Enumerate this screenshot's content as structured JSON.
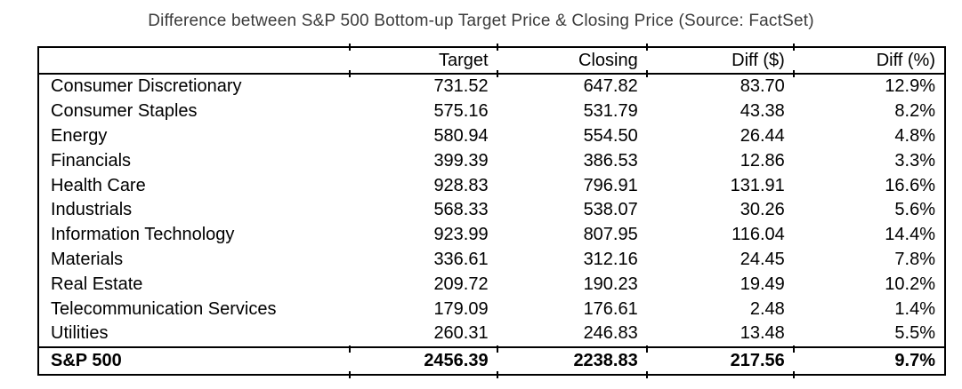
{
  "title": "Difference between S&P 500 Bottom-up Target Price & Closing Price (Source: FactSet)",
  "chart_data": {
    "type": "table",
    "title": "Difference between S&P 500 Bottom-up Target Price & Closing Price (Source: FactSet)",
    "columns": [
      "",
      "Target",
      "Closing",
      "Diff ($)",
      "Diff (%)"
    ],
    "rows": [
      [
        "Consumer Discretionary",
        "731.52",
        "647.82",
        "83.70",
        "12.9%"
      ],
      [
        "Consumer Staples",
        "575.16",
        "531.79",
        "43.38",
        "8.2%"
      ],
      [
        "Energy",
        "580.94",
        "554.50",
        "26.44",
        "4.8%"
      ],
      [
        "Financials",
        "399.39",
        "386.53",
        "12.86",
        "3.3%"
      ],
      [
        "Health Care",
        "928.83",
        "796.91",
        "131.91",
        "16.6%"
      ],
      [
        "Industrials",
        "568.33",
        "538.07",
        "30.26",
        "5.6%"
      ],
      [
        "Information Technology",
        "923.99",
        "807.95",
        "116.04",
        "14.4%"
      ],
      [
        "Materials",
        "336.61",
        "312.16",
        "24.45",
        "7.8%"
      ],
      [
        "Real Estate",
        "209.72",
        "190.23",
        "19.49",
        "10.2%"
      ],
      [
        "Telecommunication Services",
        "179.09",
        "176.61",
        "2.48",
        "1.4%"
      ],
      [
        "Utilities",
        "260.31",
        "246.83",
        "13.48",
        "5.5%"
      ]
    ],
    "total": [
      "S&P 500",
      "2456.39",
      "2238.83",
      "217.56",
      "9.7%"
    ],
    "source": "FactSet"
  },
  "colors": {
    "background": "#ffffff",
    "text": "#000000",
    "title_text": "#3b3b3b",
    "border": "#000000"
  }
}
